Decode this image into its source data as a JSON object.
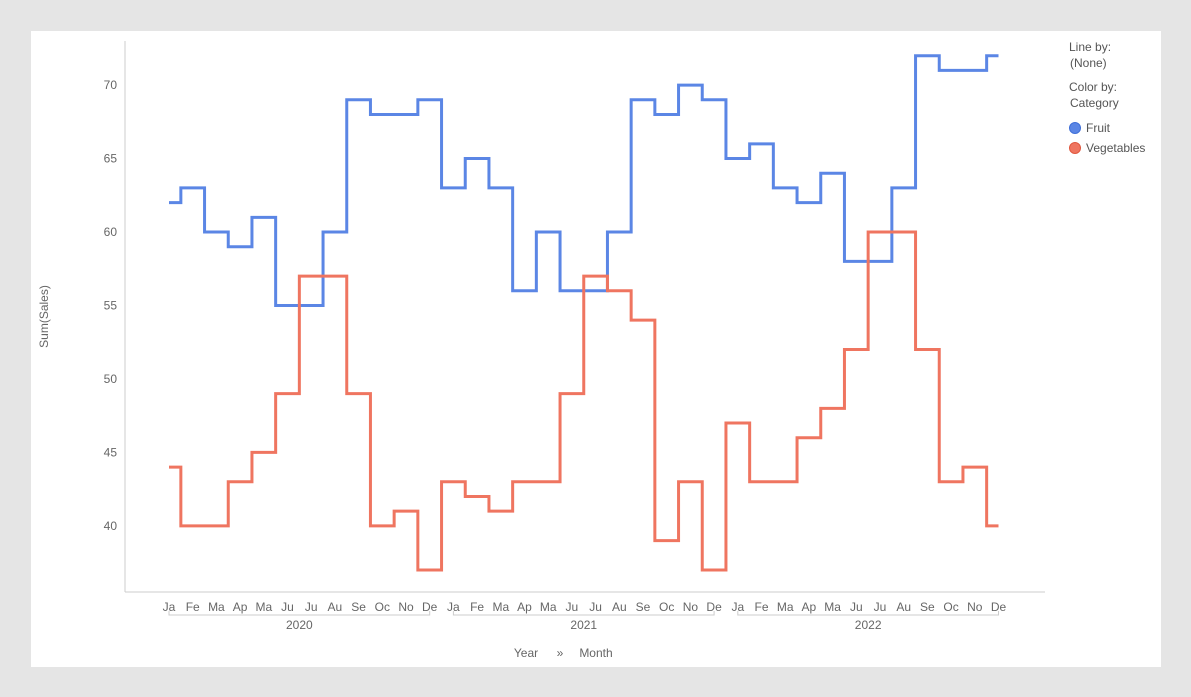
{
  "legend": {
    "line_by_label": "Line by:",
    "line_by_value": "(None)",
    "color_by_label": "Color by:",
    "color_by_value": "Category",
    "items": [
      {
        "label": "Fruit",
        "color": "#5b86e5",
        "border": "#3f6fd8"
      },
      {
        "label": "Vegetables",
        "color": "#ef7560",
        "border": "#e0583f"
      }
    ]
  },
  "chart_data": {
    "type": "line",
    "step": true,
    "ylabel": "Sum(Sales)",
    "xlabel_parts": [
      "Year",
      "»",
      "Month"
    ],
    "years": [
      "2020",
      "2021",
      "2022"
    ],
    "months": [
      "Ja",
      "Fe",
      "Ma",
      "Ap",
      "Ma",
      "Ju",
      "Ju",
      "Au",
      "Se",
      "Oc",
      "No",
      "De"
    ],
    "ylim": [
      35.5,
      73
    ],
    "yticks": [
      40,
      45,
      50,
      55,
      60,
      65,
      70
    ],
    "grid": false,
    "legend_position": "top-right",
    "series": [
      {
        "name": "Fruit",
        "color": "#5b86e5",
        "values": [
          62,
          63,
          60,
          59,
          61,
          55,
          55,
          60,
          69,
          68,
          68,
          69,
          63,
          65,
          63,
          56,
          60,
          56,
          56,
          60,
          69,
          68,
          70,
          69,
          65,
          66,
          63,
          62,
          64,
          58,
          58,
          63,
          72,
          71,
          71,
          72
        ]
      },
      {
        "name": "Vegetables",
        "color": "#ef7560",
        "values": [
          44,
          40,
          40,
          43,
          45,
          49,
          57,
          57,
          49,
          40,
          41,
          37,
          43,
          42,
          41,
          43,
          43,
          49,
          57,
          56,
          54,
          39,
          43,
          37,
          47,
          43,
          43,
          46,
          48,
          52,
          60,
          60,
          52,
          43,
          44,
          40
        ]
      }
    ]
  }
}
